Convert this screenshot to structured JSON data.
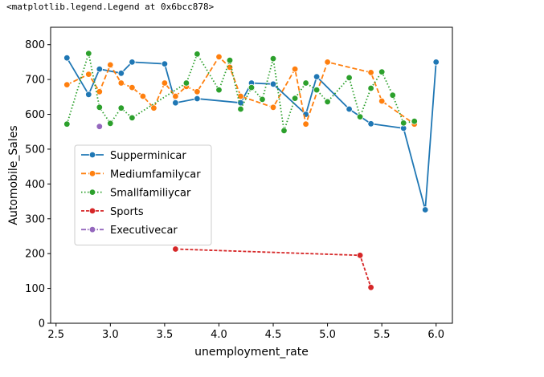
{
  "output": {
    "repr": "<matplotlib.legend.Legend at 0x6bcc878>"
  },
  "chart_data": {
    "type": "line",
    "title": "",
    "xlabel": "unemployment_rate",
    "ylabel": "Automobile_Sales",
    "xlim": [
      2.45,
      6.15
    ],
    "ylim": [
      0,
      850
    ],
    "xticks": [
      2.5,
      3.0,
      3.5,
      4.0,
      4.5,
      5.0,
      5.5,
      6.0
    ],
    "xtick_labels": [
      "2.5",
      "3.0",
      "3.5",
      "4.0",
      "4.5",
      "5.0",
      "5.5",
      "6.0"
    ],
    "yticks": [
      0,
      100,
      200,
      300,
      400,
      500,
      600,
      700,
      800
    ],
    "ytick_labels": [
      "0",
      "100",
      "200",
      "300",
      "400",
      "500",
      "600",
      "700",
      "800"
    ],
    "grid": false,
    "legend_position": "center-left",
    "series": [
      {
        "name": "Supperminicar",
        "color": "#1f77b4",
        "dash": "solid",
        "x": [
          2.6,
          2.8,
          2.9,
          3.1,
          3.2,
          3.5,
          3.6,
          3.8,
          4.2,
          4.3,
          4.5,
          4.8,
          4.9,
          5.2,
          5.4,
          5.7,
          5.9,
          6.0
        ],
        "y": [
          762,
          657,
          730,
          718,
          750,
          745,
          633,
          645,
          633,
          690,
          687,
          600,
          708,
          615,
          573,
          560,
          326,
          750
        ]
      },
      {
        "name": "Mediumfamilycar",
        "color": "#ff7f0e",
        "dash": "dashed",
        "x": [
          2.6,
          2.8,
          2.9,
          3.0,
          3.1,
          3.2,
          3.3,
          3.4,
          3.5,
          3.6,
          3.7,
          3.8,
          4.0,
          4.1,
          4.2,
          4.5,
          4.7,
          4.8,
          5.0,
          5.4,
          5.5,
          5.8
        ],
        "y": [
          685,
          715,
          665,
          742,
          690,
          677,
          652,
          618,
          690,
          652,
          680,
          665,
          765,
          735,
          652,
          620,
          730,
          572,
          750,
          720,
          638,
          572
        ]
      },
      {
        "name": "Smallfamiliycar",
        "color": "#2ca02c",
        "dash": "dotted",
        "x": [
          2.6,
          2.8,
          2.9,
          3.0,
          3.1,
          3.2,
          3.7,
          3.8,
          4.0,
          4.1,
          4.2,
          4.3,
          4.4,
          4.5,
          4.6,
          4.7,
          4.8,
          4.9,
          5.0,
          5.2,
          5.3,
          5.4,
          5.5,
          5.6,
          5.7,
          5.8
        ],
        "y": [
          572,
          775,
          620,
          574,
          618,
          590,
          690,
          773,
          670,
          755,
          615,
          677,
          643,
          760,
          553,
          646,
          690,
          670,
          636,
          705,
          593,
          675,
          722,
          655,
          575,
          580
        ]
      },
      {
        "name": "Sports",
        "color": "#d62728",
        "dash": "densedash",
        "x": [
          3.6,
          5.3,
          5.4
        ],
        "y": [
          213,
          195,
          103
        ]
      },
      {
        "name": "Executivecar",
        "color": "#9467bd",
        "dash": "dashdot",
        "x": [
          2.9
        ],
        "y": [
          565
        ]
      }
    ]
  }
}
